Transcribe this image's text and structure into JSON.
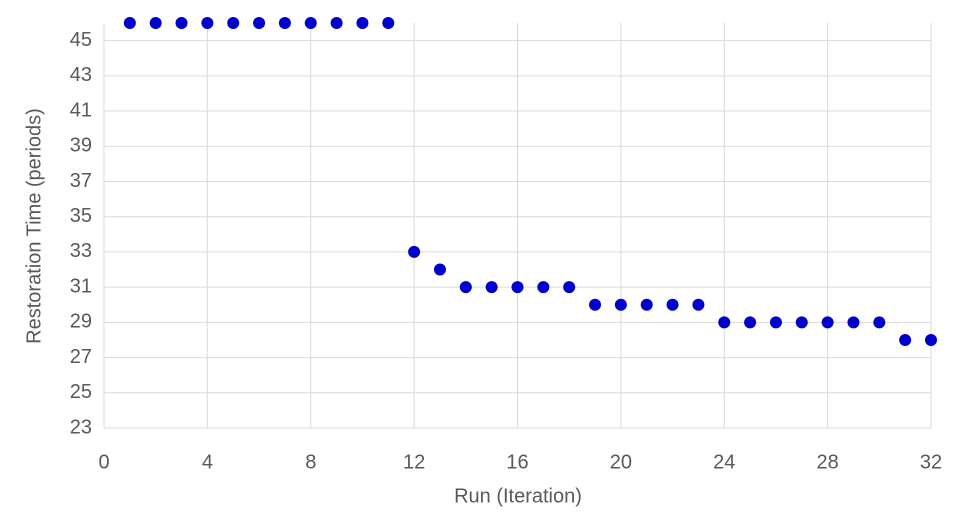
{
  "chart_data": {
    "type": "scatter",
    "x_label": "Run (Iteration)",
    "y_label": "Restoration Time (periods)",
    "series": [
      {
        "color": "#0000cc",
        "x": [
          1,
          2,
          3,
          4,
          5,
          6,
          7,
          8,
          9,
          10,
          11,
          12,
          13,
          14,
          15,
          16,
          17,
          18,
          19,
          20,
          21,
          22,
          23,
          24,
          25,
          26,
          27,
          28,
          29,
          30,
          31,
          32
        ],
        "values": [
          46,
          46,
          46,
          46,
          46,
          46,
          46,
          46,
          46,
          46,
          46,
          33,
          32,
          31,
          31,
          31,
          31,
          31,
          30,
          30,
          30,
          30,
          30,
          29,
          29,
          29,
          29,
          29,
          29,
          29,
          28,
          28
        ]
      }
    ],
    "xlim": [
      0,
      32
    ],
    "xticks": [
      0,
      4,
      8,
      12,
      16,
      20,
      24,
      28,
      32
    ],
    "ylim": [
      23,
      46
    ],
    "yticks": [
      23,
      25,
      27,
      29,
      31,
      33,
      35,
      37,
      39,
      41,
      43,
      45
    ],
    "grid": true
  }
}
